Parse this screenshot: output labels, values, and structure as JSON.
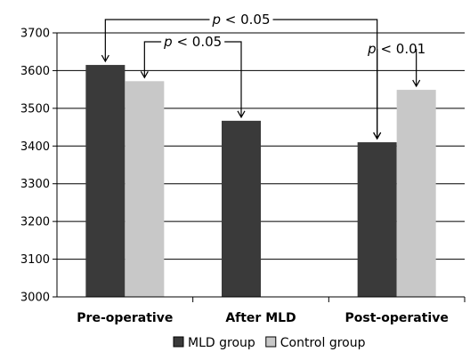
{
  "chart_data": {
    "type": "bar",
    "categories": [
      "Pre-operative",
      "After MLD",
      "Post-operative"
    ],
    "series": [
      {
        "name": "MLD group",
        "values": [
          3615,
          3467,
          3410
        ],
        "color": "#3a3a3a"
      },
      {
        "name": "Control group",
        "values": [
          3572,
          null,
          3549
        ],
        "color": "#c8c8c8"
      }
    ],
    "ylim": [
      3000,
      3700
    ],
    "yticks": [
      3000,
      3100,
      3200,
      3300,
      3400,
      3500,
      3600,
      3700
    ],
    "grid": true,
    "legend": "bottom",
    "annotations": [
      {
        "label_italic": "p",
        "label_rest": " < 0.05",
        "from": {
          "category": "Pre-operative",
          "series": "MLD group"
        },
        "to": {
          "category": "Post-operative",
          "series": "MLD group"
        }
      },
      {
        "label_italic": "p",
        "label_rest": " < 0.05",
        "from": {
          "category": "Pre-operative",
          "series": "Control group"
        },
        "to": {
          "category": "After MLD",
          "series": "MLD group"
        }
      },
      {
        "label_italic": "p",
        "label_rest": " < 0.01",
        "from": {
          "category": "Post-operative",
          "series": "MLD group"
        },
        "to": {
          "category": "Post-operative",
          "series": "Control group"
        }
      }
    ]
  }
}
